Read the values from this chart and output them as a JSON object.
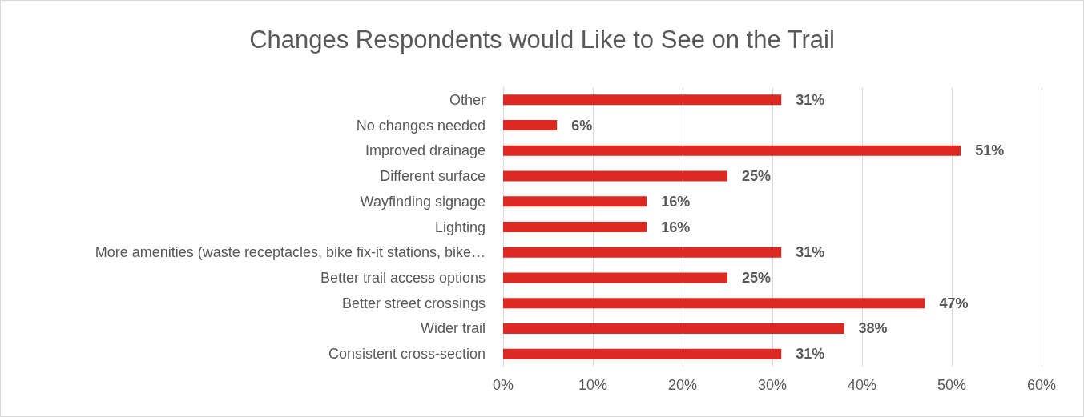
{
  "chart_data": {
    "type": "bar",
    "orientation": "horizontal",
    "title": "Changes Respondents would Like to See on the Trail",
    "categories": [
      "Other",
      "No changes needed",
      "Improved drainage",
      "Different surface",
      "Wayfinding signage",
      "Lighting",
      "More amenities (waste receptacles, bike fix-it stations, bike…",
      "Better trail access options",
      "Better street crossings",
      "Wider trail",
      "Consistent cross-section"
    ],
    "values": [
      31,
      6,
      51,
      25,
      16,
      16,
      31,
      25,
      47,
      38,
      31
    ],
    "value_labels": [
      "31%",
      "6%",
      "51%",
      "25%",
      "16%",
      "16%",
      "31%",
      "25%",
      "47%",
      "38%",
      "31%"
    ],
    "color": "#dc2a23",
    "xlim": [
      0,
      60
    ],
    "xticks": [
      {
        "value": 0,
        "label": "0%"
      },
      {
        "value": 10,
        "label": "10%"
      },
      {
        "value": 20,
        "label": "20%"
      },
      {
        "value": 30,
        "label": "30%"
      },
      {
        "value": 40,
        "label": "40%"
      },
      {
        "value": 50,
        "label": "50%"
      },
      {
        "value": 60,
        "label": "60%"
      }
    ],
    "grid": "x"
  }
}
